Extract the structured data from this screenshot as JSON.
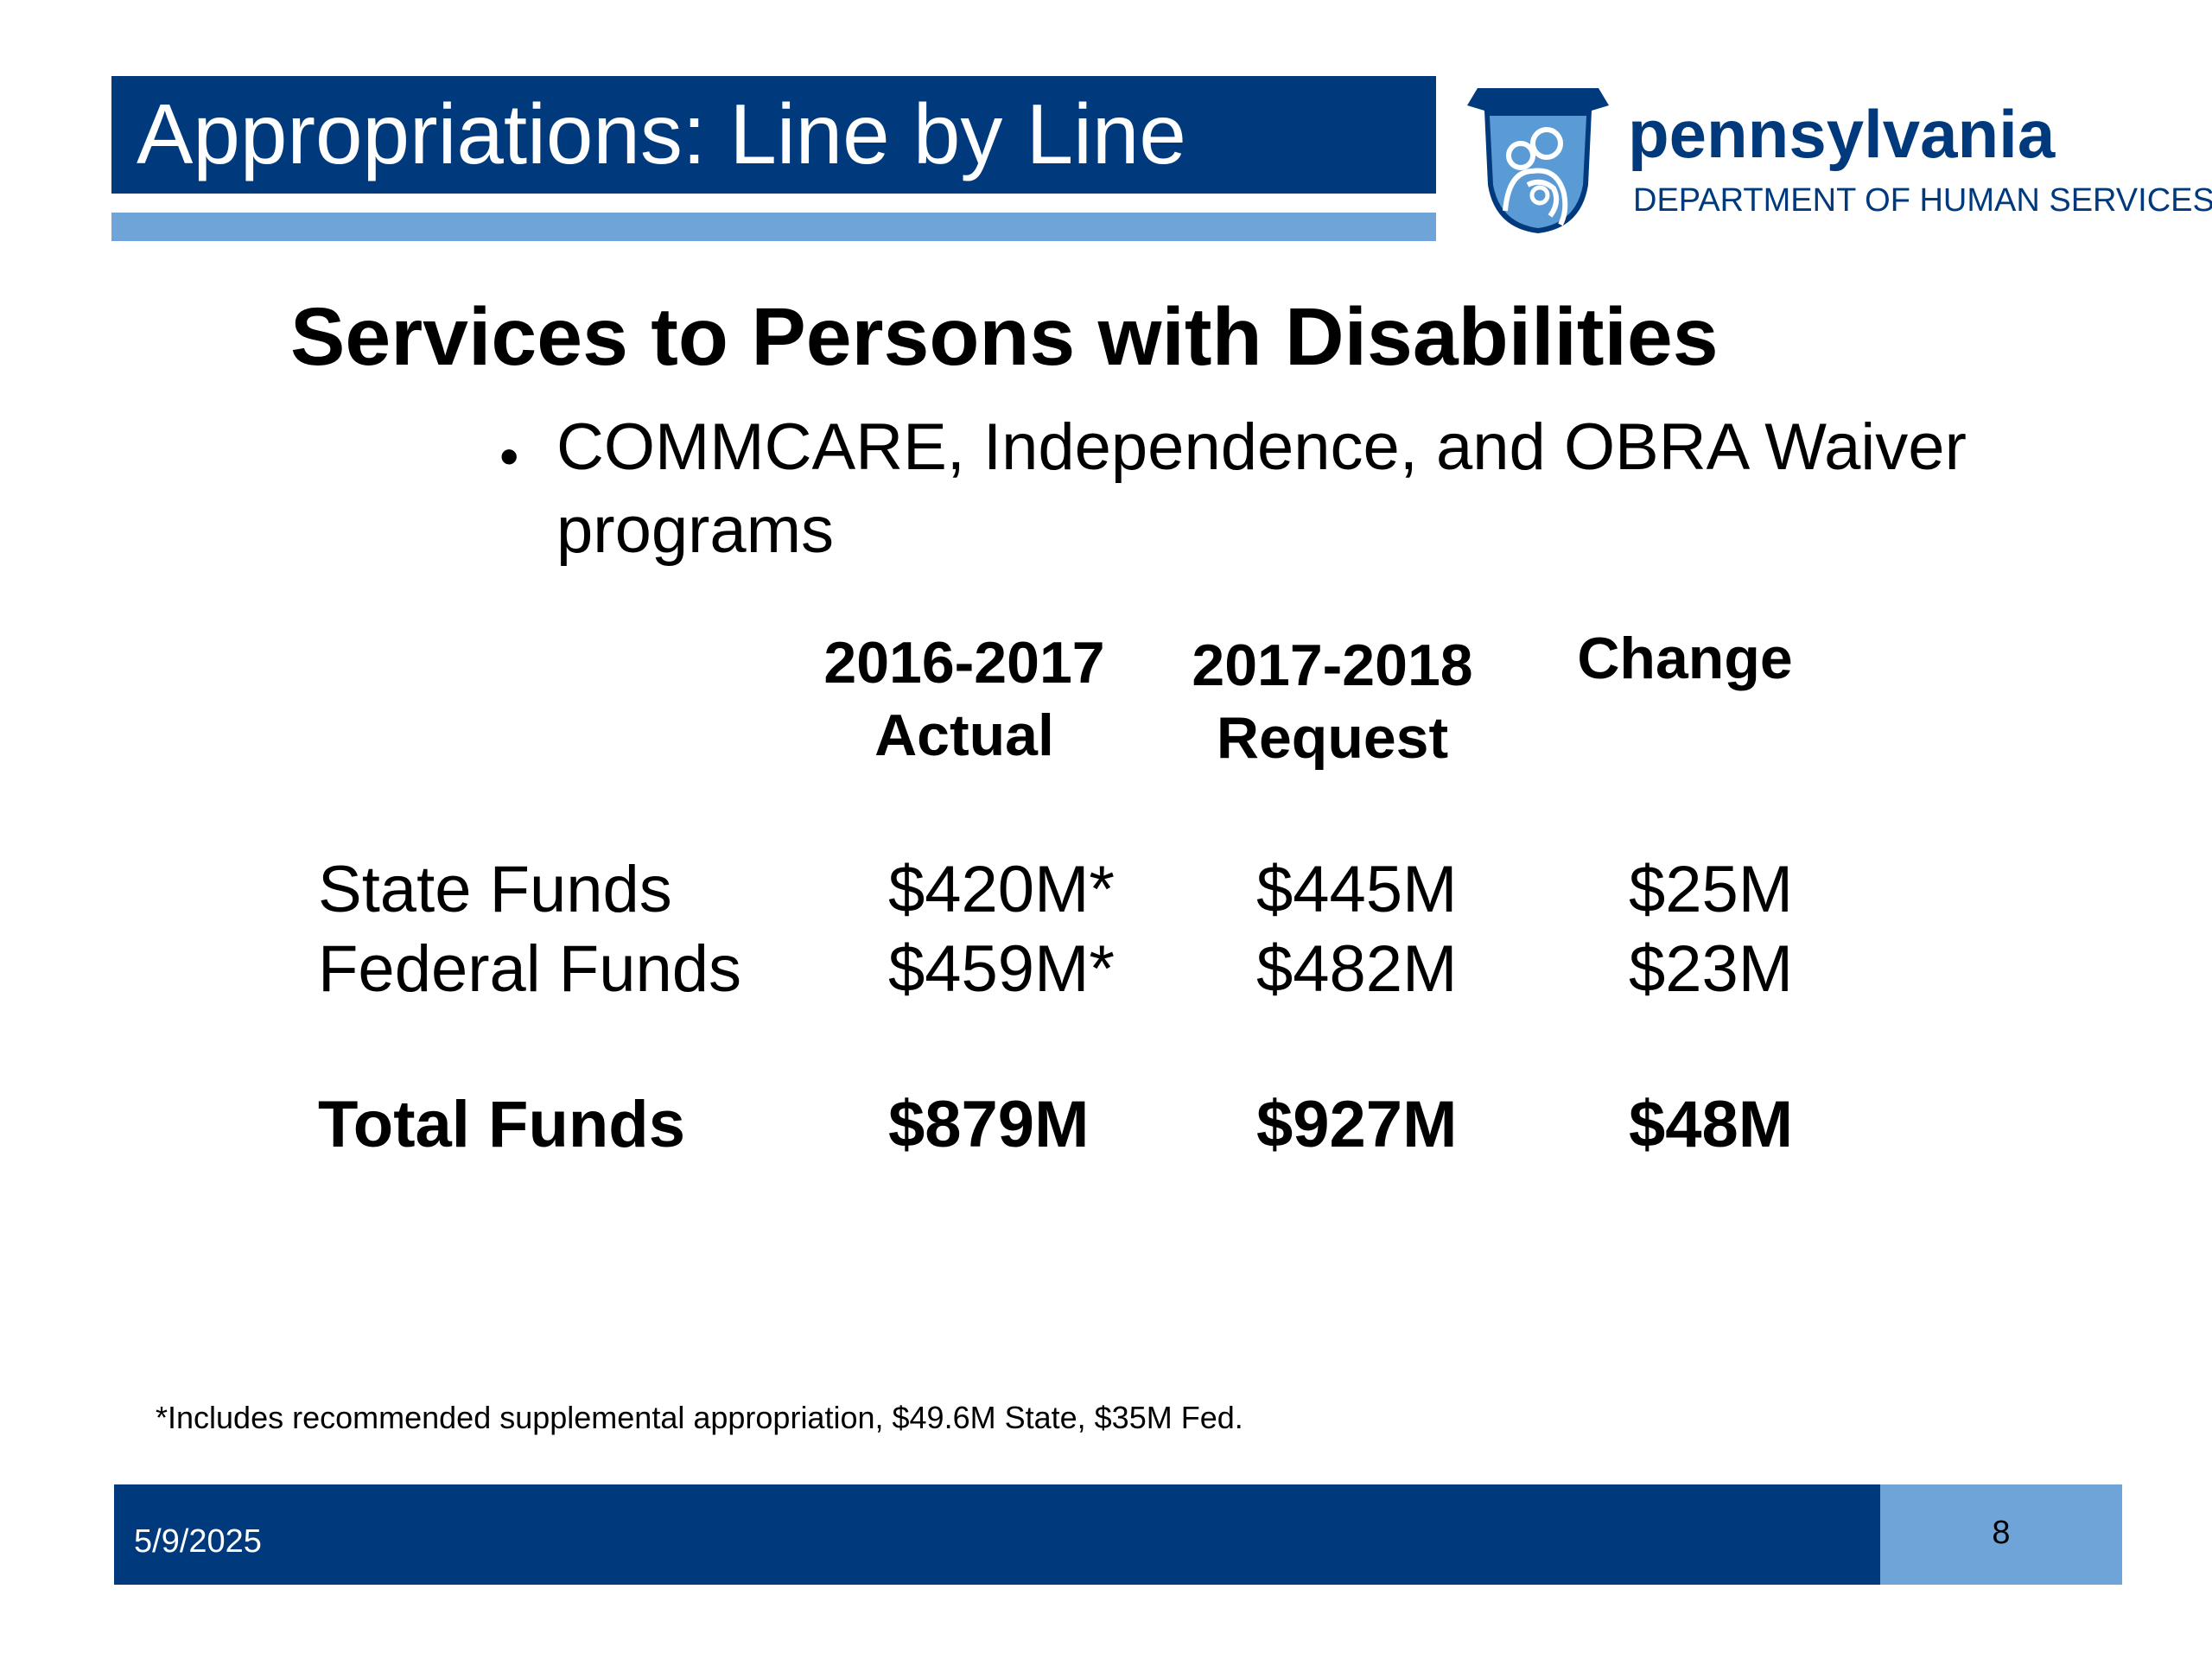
{
  "colors": {
    "dark_blue": "#003a7d",
    "light_blue": "#6fa4d8",
    "logo_blue": "#5b9bd5"
  },
  "header": {
    "title": "Appropriations: Line by Line",
    "logo_icon": "keystone-family-icon",
    "brand_name": "pennsylvania",
    "brand_department": "DEPARTMENT OF HUMAN SERVICES"
  },
  "content": {
    "heading": "Services to Persons with Disabilities",
    "bullet": "COMMCARE, Independence, and OBRA Waiver programs"
  },
  "table": {
    "columns": [
      {
        "line1": "2016-2017",
        "line2": "Actual"
      },
      {
        "line1": "2017-2018",
        "line2": "Request"
      },
      {
        "line1": "Change",
        "line2": ""
      }
    ],
    "rows": [
      {
        "label": "State Funds",
        "actual": "$420M*",
        "request": "$445M",
        "change": "$25M"
      },
      {
        "label": "Federal Funds",
        "actual": "$459M*",
        "request": "$482M",
        "change": "$23M"
      }
    ],
    "total": {
      "label": "Total Funds",
      "actual": "$879M",
      "request": "$927M",
      "change": "$48M"
    }
  },
  "footnote": "*Includes recommended supplemental appropriation, $49.6M State, $35M Fed.",
  "footer": {
    "date": "5/9/2025",
    "page_number": "8"
  }
}
